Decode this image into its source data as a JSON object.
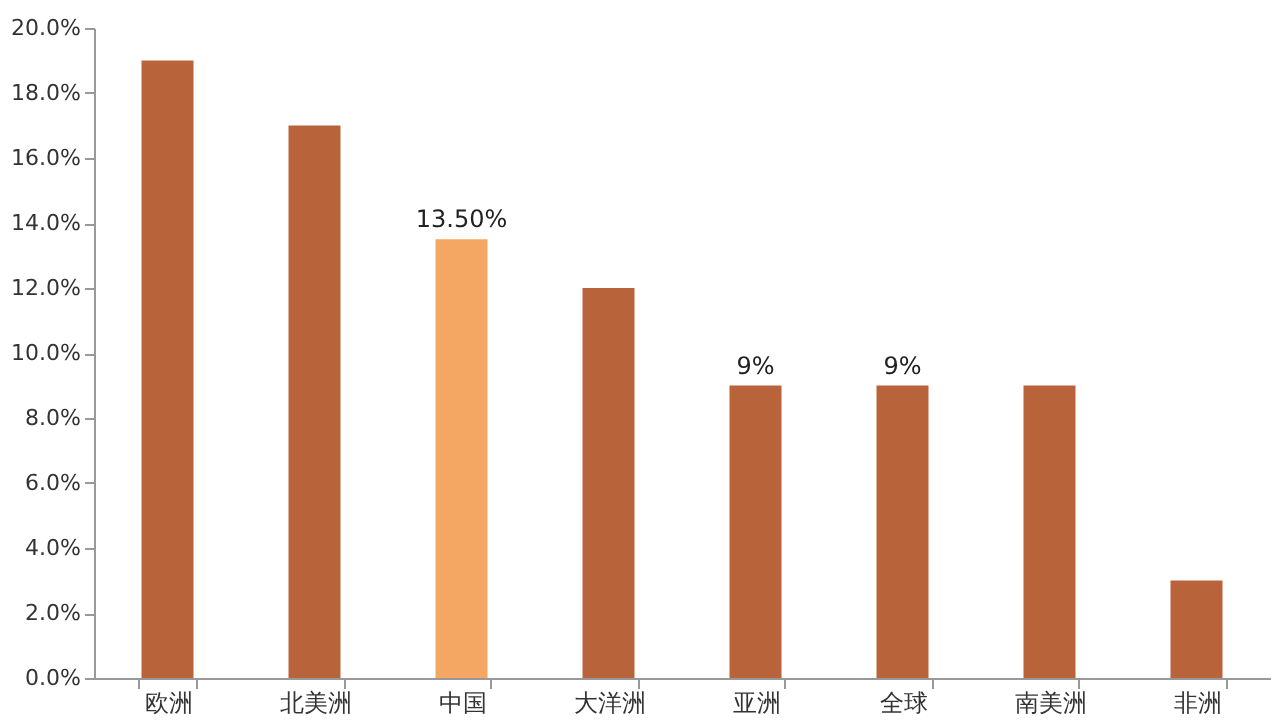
{
  "chart_data": {
    "type": "bar",
    "categories": [
      "欧洲",
      "北美洲",
      "中国",
      "大洋洲",
      "亚洲",
      "全球",
      "南美洲",
      "非洲"
    ],
    "values": [
      19,
      17,
      13.5,
      12,
      9,
      9,
      9,
      3
    ],
    "colors": [
      "#b8633a",
      "#b8633a",
      "#f3a762",
      "#b8633a",
      "#b8633a",
      "#b8633a",
      "#b8633a",
      "#b8633a"
    ],
    "value_labels": [
      null,
      null,
      "13.50%",
      null,
      "9%",
      "9%",
      null,
      null
    ],
    "ylim": [
      0,
      20
    ],
    "yticks": [
      {
        "value": 0,
        "label": "0.0%"
      },
      {
        "value": 2,
        "label": "2.0%"
      },
      {
        "value": 4,
        "label": "4.0%"
      },
      {
        "value": 6,
        "label": "6.0%"
      },
      {
        "value": 8,
        "label": "8.0%"
      },
      {
        "value": 10,
        "label": "10.0%"
      },
      {
        "value": 12,
        "label": "12.0%"
      },
      {
        "value": 14,
        "label": "14.0%"
      },
      {
        "value": 16,
        "label": "16.0%"
      },
      {
        "value": 18,
        "label": "18.0%"
      },
      {
        "value": 20,
        "label": "20.0%"
      }
    ],
    "grid": false
  }
}
